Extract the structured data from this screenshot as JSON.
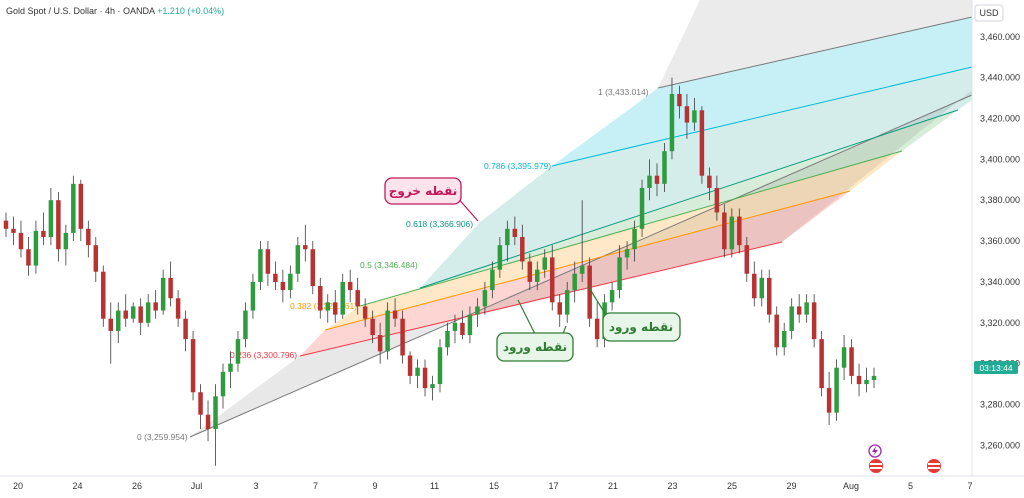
{
  "header": {
    "title": "Gold Spot / U.S. Dollar · 4h · OANDA",
    "change": "+1.210 (+0.04%)",
    "currency": "USD"
  },
  "price_badge": "03:13:44",
  "colors": {
    "up": "#26a69a",
    "down": "#e04c4c",
    "up_body": "#2e9b3f",
    "down_body": "#b83232",
    "badge": "#22ab94",
    "callout_red": "#c2185b",
    "callout_green": "#2e7d32"
  },
  "callouts": {
    "exit": "نقطه خروج",
    "entry1": "نقطه ورود",
    "entry2": "نقطه ورود"
  },
  "chart_data": {
    "type": "candlestick",
    "title": "Gold Spot / U.S. Dollar · 4h · OANDA",
    "ylabel": "USD",
    "ylim": [
      3245,
      3478
    ],
    "y_ticks": [
      "3,260.000",
      "3,280.000",
      "3,300.000",
      "3,320.000",
      "3,340.000",
      "3,360.000",
      "3,380.000",
      "3,400.000",
      "3,420.000",
      "3,440.000",
      "3,460.000"
    ],
    "x_ticks": [
      "20",
      "24",
      "26",
      "Jul",
      "3",
      "7",
      "9",
      "11",
      "15",
      "17",
      "21",
      "23",
      "25",
      "29",
      "Aug",
      "5",
      "7"
    ],
    "fib_levels": [
      {
        "label": "0 (3,259.954)",
        "value": 3259.954
      },
      {
        "label": "0.236 (3,300.796)",
        "value": 3300.796
      },
      {
        "label": "0.382 (3,326.061)",
        "value": 3326.061
      },
      {
        "label": "0.5 (3,346.484)",
        "value": 3346.484
      },
      {
        "label": "0.618 (3,366.906)",
        "value": 3366.906
      },
      {
        "label": "0.786 (3,395.979)",
        "value": 3395.979
      },
      {
        "label": "1 (3,433.014)",
        "value": 3433.014
      }
    ],
    "ohlc": [
      [
        3370,
        3374,
        3362,
        3366
      ],
      [
        3366,
        3372,
        3358,
        3364
      ],
      [
        3364,
        3370,
        3352,
        3356
      ],
      [
        3356,
        3362,
        3343,
        3348
      ],
      [
        3348,
        3370,
        3344,
        3365
      ],
      [
        3365,
        3374,
        3358,
        3362
      ],
      [
        3362,
        3386,
        3358,
        3380
      ],
      [
        3380,
        3384,
        3350,
        3356
      ],
      [
        3356,
        3368,
        3348,
        3364
      ],
      [
        3364,
        3392,
        3360,
        3388
      ],
      [
        3388,
        3390,
        3360,
        3366
      ],
      [
        3366,
        3370,
        3352,
        3358
      ],
      [
        3358,
        3362,
        3340,
        3345
      ],
      [
        3345,
        3348,
        3318,
        3322
      ],
      [
        3322,
        3330,
        3300,
        3316
      ],
      [
        3316,
        3330,
        3310,
        3326
      ],
      [
        3326,
        3334,
        3318,
        3322
      ],
      [
        3322,
        3330,
        3320,
        3328
      ],
      [
        3328,
        3332,
        3314,
        3320
      ],
      [
        3320,
        3334,
        3318,
        3330
      ],
      [
        3330,
        3336,
        3322,
        3326
      ],
      [
        3326,
        3346,
        3324,
        3342
      ],
      [
        3342,
        3350,
        3328,
        3332
      ],
      [
        3332,
        3336,
        3318,
        3322
      ],
      [
        3322,
        3326,
        3306,
        3312
      ],
      [
        3312,
        3316,
        3282,
        3286
      ],
      [
        3286,
        3290,
        3268,
        3275
      ],
      [
        3275,
        3282,
        3262,
        3268
      ],
      [
        3268,
        3290,
        3250,
        3284
      ],
      [
        3284,
        3300,
        3278,
        3296
      ],
      [
        3296,
        3306,
        3288,
        3300
      ],
      [
        3300,
        3316,
        3296,
        3312
      ],
      [
        3312,
        3330,
        3308,
        3326
      ],
      [
        3326,
        3344,
        3322,
        3340
      ],
      [
        3340,
        3360,
        3336,
        3356
      ],
      [
        3356,
        3360,
        3338,
        3344
      ],
      [
        3344,
        3350,
        3336,
        3340
      ],
      [
        3340,
        3346,
        3330,
        3336
      ],
      [
        3336,
        3348,
        3332,
        3344
      ],
      [
        3344,
        3362,
        3340,
        3358
      ],
      [
        3358,
        3368,
        3350,
        3356
      ],
      [
        3356,
        3360,
        3334,
        3338
      ],
      [
        3338,
        3342,
        3322,
        3326
      ],
      [
        3326,
        3334,
        3320,
        3330
      ],
      [
        3330,
        3336,
        3320,
        3324
      ],
      [
        3324,
        3344,
        3322,
        3340
      ],
      [
        3340,
        3346,
        3330,
        3336
      ],
      [
        3336,
        3342,
        3324,
        3328
      ],
      [
        3328,
        3332,
        3318,
        3322
      ],
      [
        3322,
        3326,
        3310,
        3314
      ],
      [
        3314,
        3320,
        3300,
        3306
      ],
      [
        3306,
        3330,
        3302,
        3326
      ],
      [
        3326,
        3332,
        3318,
        3322
      ],
      [
        3322,
        3326,
        3300,
        3304
      ],
      [
        3304,
        3306,
        3290,
        3294
      ],
      [
        3294,
        3302,
        3288,
        3298
      ],
      [
        3298,
        3302,
        3284,
        3288
      ],
      [
        3288,
        3294,
        3282,
        3290
      ],
      [
        3290,
        3312,
        3286,
        3308
      ],
      [
        3308,
        3320,
        3304,
        3316
      ],
      [
        3316,
        3324,
        3310,
        3320
      ],
      [
        3320,
        3326,
        3312,
        3314
      ],
      [
        3314,
        3328,
        3310,
        3324
      ],
      [
        3324,
        3332,
        3318,
        3328
      ],
      [
        3328,
        3340,
        3324,
        3336
      ],
      [
        3336,
        3350,
        3332,
        3346
      ],
      [
        3346,
        3362,
        3342,
        3358
      ],
      [
        3358,
        3370,
        3350,
        3366
      ],
      [
        3366,
        3372,
        3358,
        3362
      ],
      [
        3362,
        3368,
        3346,
        3350
      ],
      [
        3350,
        3354,
        3336,
        3340
      ],
      [
        3340,
        3350,
        3336,
        3346
      ],
      [
        3346,
        3356,
        3342,
        3352
      ],
      [
        3352,
        3358,
        3326,
        3330
      ],
      [
        3330,
        3334,
        3318,
        3324
      ],
      [
        3324,
        3340,
        3320,
        3336
      ],
      [
        3336,
        3350,
        3330,
        3344
      ],
      [
        3344,
        3380,
        3340,
        3348
      ],
      [
        3348,
        3352,
        3318,
        3322
      ],
      [
        3322,
        3330,
        3308,
        3312
      ],
      [
        3312,
        3334,
        3308,
        3330
      ],
      [
        3330,
        3340,
        3326,
        3336
      ],
      [
        3336,
        3358,
        3332,
        3352
      ],
      [
        3352,
        3360,
        3346,
        3356
      ],
      [
        3356,
        3370,
        3350,
        3366
      ],
      [
        3366,
        3390,
        3362,
        3386
      ],
      [
        3386,
        3400,
        3380,
        3392
      ],
      [
        3392,
        3398,
        3382,
        3388
      ],
      [
        3388,
        3408,
        3384,
        3404
      ],
      [
        3404,
        3440,
        3400,
        3432
      ],
      [
        3432,
        3436,
        3420,
        3426
      ],
      [
        3426,
        3432,
        3410,
        3418
      ],
      [
        3418,
        3430,
        3414,
        3424
      ],
      [
        3424,
        3426,
        3388,
        3392
      ],
      [
        3392,
        3396,
        3380,
        3386
      ],
      [
        3386,
        3392,
        3370,
        3374
      ],
      [
        3374,
        3378,
        3352,
        3356
      ],
      [
        3356,
        3376,
        3352,
        3372
      ],
      [
        3372,
        3376,
        3354,
        3358
      ],
      [
        3358,
        3362,
        3340,
        3344
      ],
      [
        3344,
        3350,
        3328,
        3332
      ],
      [
        3332,
        3346,
        3328,
        3342
      ],
      [
        3342,
        3346,
        3320,
        3324
      ],
      [
        3324,
        3328,
        3304,
        3308
      ],
      [
        3308,
        3320,
        3304,
        3316
      ],
      [
        3316,
        3332,
        3312,
        3328
      ],
      [
        3328,
        3334,
        3320,
        3324
      ],
      [
        3324,
        3334,
        3320,
        3330
      ],
      [
        3330,
        3334,
        3308,
        3312
      ],
      [
        3312,
        3316,
        3284,
        3288
      ],
      [
        3288,
        3296,
        3270,
        3276
      ],
      [
        3276,
        3302,
        3272,
        3298
      ],
      [
        3298,
        3314,
        3292,
        3308
      ],
      [
        3308,
        3312,
        3290,
        3294
      ],
      [
        3294,
        3300,
        3284,
        3290
      ],
      [
        3290,
        3298,
        3286,
        3292
      ],
      [
        3292,
        3298,
        3288,
        3294
      ]
    ]
  }
}
